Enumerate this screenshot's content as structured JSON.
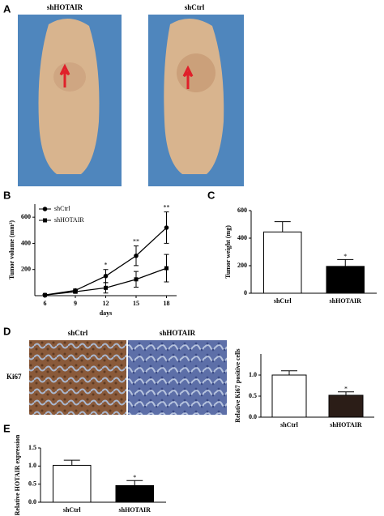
{
  "panel_labels": [
    "A",
    "B",
    "C",
    "D",
    "E"
  ],
  "photos": {
    "labels": [
      "shHOTAIR",
      "shCtrl"
    ]
  },
  "staining": {
    "columns": [
      "shCtrl",
      "shHOTAIR"
    ],
    "row": "Ki67"
  },
  "chart_data": [
    {
      "type": "line",
      "y_label": "Tumor volume (mm³)",
      "x_label": "days",
      "x": [
        6,
        9,
        12,
        15,
        18
      ],
      "xlim": [
        5,
        19
      ],
      "xticks": [
        6,
        9,
        12,
        15,
        18
      ],
      "ylim": [
        0,
        700
      ],
      "yticks": [
        200,
        400,
        600
      ],
      "legend": "top-left",
      "series": [
        {
          "name": "shCtrl",
          "color": "#000000",
          "marker": "circle",
          "values": [
            5,
            40,
            150,
            305,
            520
          ],
          "errors": [
            5,
            10,
            50,
            75,
            120
          ]
        },
        {
          "name": "shHOTAIR",
          "color": "#000000",
          "marker": "square",
          "values": [
            5,
            30,
            60,
            125,
            210
          ],
          "errors": [
            5,
            10,
            40,
            60,
            105
          ]
        }
      ],
      "significance": [
        null,
        null,
        "*",
        "**",
        "**"
      ]
    },
    {
      "type": "bar",
      "y_label": "Tumor weight (mg)",
      "categories": [
        "shCtrl",
        "shHOTAIR"
      ],
      "values": [
        445,
        195
      ],
      "errors": [
        75,
        50
      ],
      "colors": [
        "#ffffff",
        "#000000"
      ],
      "ylim": [
        0,
        600
      ],
      "yticks": [
        0,
        200,
        400,
        600
      ],
      "significance": [
        null,
        "*"
      ]
    },
    {
      "type": "bar",
      "y_label": "Relative Ki67 positive cells",
      "categories": [
        "shCtrl",
        "shHOTAIR"
      ],
      "values": [
        1.0,
        0.52
      ],
      "errors": [
        0.1,
        0.08
      ],
      "colors": [
        "#ffffff",
        "#2b1d17"
      ],
      "ylim": [
        0,
        1.5
      ],
      "yticks": [
        {
          "value": 0,
          "label": "0.0"
        },
        {
          "value": 0.5,
          "label": "0.5"
        },
        {
          "value": 1,
          "label": "1.0"
        }
      ],
      "significance": [
        null,
        "*"
      ]
    },
    {
      "type": "bar",
      "y_label": "Relative HOTAIR expression",
      "categories": [
        "shCtrl",
        "shHOTAIR"
      ],
      "values": [
        1.02,
        0.46
      ],
      "errors": [
        0.14,
        0.14
      ],
      "colors": [
        "#ffffff",
        "#000000"
      ],
      "ylim": [
        0,
        1.5
      ],
      "yticks": [
        {
          "value": 0,
          "label": "0.0"
        },
        {
          "value": 0.5,
          "label": "0.5"
        },
        {
          "value": 1,
          "label": "1.0"
        },
        {
          "value": 1.5,
          "label": "1.5"
        }
      ],
      "significance": [
        null,
        "*"
      ]
    }
  ]
}
